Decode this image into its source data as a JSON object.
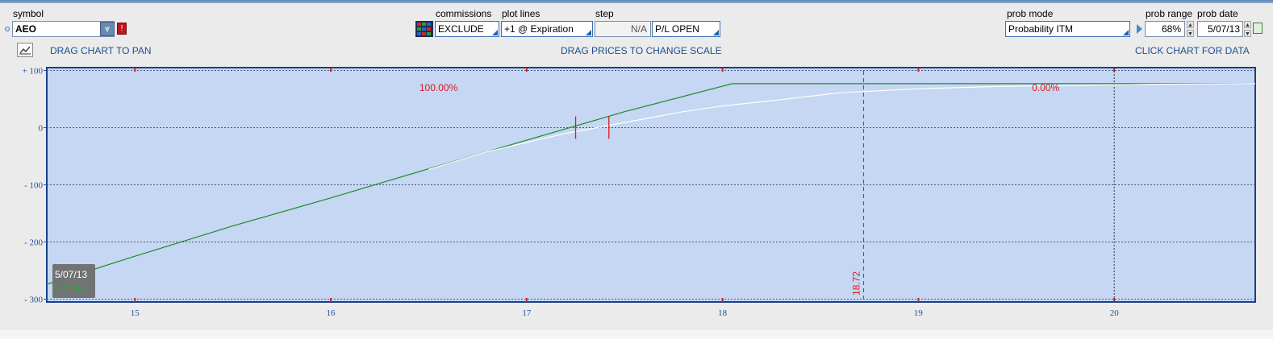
{
  "header": {
    "symbol_label": "symbol",
    "symbol_value": "AEO",
    "commissions_label": "commissions",
    "commissions_value": "EXCLUDE",
    "plot_lines_label": "plot lines",
    "plot_lines_value": "+1 @ Expiration",
    "step_label": "step",
    "step_value": "N/A",
    "pl_value": "P/L OPEN",
    "prob_mode_label": "prob mode",
    "prob_mode_value": "Probability ITM",
    "prob_range_label": "prob range",
    "prob_range_value": "68%",
    "prob_date_label": "prob date",
    "prob_date_value": "5/07/13"
  },
  "hints": {
    "pan": "DRAG CHART TO PAN",
    "scale": "DRAG PRICES TO CHANGE SCALE",
    "data": "CLICK CHART FOR DATA"
  },
  "icons": {
    "symbol_dropdown": "double-chevron-down-icon",
    "alert": "alert-icon",
    "commissions": "grid-icon",
    "chart_type": "chart-icon",
    "prob_arrow": "play-arrow-icon",
    "calendar": "calendar-icon"
  },
  "colors": {
    "plot_background": "#c5d7f2",
    "expiration_line": "#1f8a2e",
    "today_line": "#ffffff",
    "marker": "#e01919",
    "axis_text": "#1a4f9c"
  },
  "chart_data": {
    "type": "line",
    "x_ticks": [
      "15",
      "16",
      "17",
      "18",
      "19",
      "20"
    ],
    "y_ticks": [
      "+ 100",
      "0",
      "- 100",
      "- 200",
      "- 300"
    ],
    "xlim": [
      14.55,
      20.72
    ],
    "ylim": [
      -305,
      105
    ],
    "series": [
      {
        "color": "#1f8a2e",
        "x": [
          14.55,
          15.0,
          15.5,
          16.0,
          16.5,
          17.0,
          17.5,
          18.05,
          18.5,
          19.0,
          19.5,
          20.0,
          20.72
        ],
        "y": [
          -274,
          -225,
          -172,
          -123,
          -72,
          -22,
          28,
          77,
          77,
          77,
          77,
          77,
          77
        ]
      },
      {
        "color": "#ffffff",
        "x": [
          16.5,
          16.8,
          17.0,
          17.2,
          17.5,
          17.8,
          18.0,
          18.3,
          18.6,
          19.0,
          19.4,
          19.8,
          20.2,
          20.72
        ],
        "y": [
          -73,
          -42,
          -26,
          -10,
          9,
          28,
          38,
          49,
          61,
          68,
          72,
          74,
          76,
          77
        ]
      }
    ],
    "markers": [
      17.25,
      17.42
    ],
    "probability_line_x": 18.72,
    "probability_line_label": "18.72",
    "gridline_x_dotted": 20.0,
    "annotations": [
      {
        "text": "100.00%",
        "x": 16.55,
        "y": 70
      },
      {
        "text": "0.00%",
        "x": 19.65,
        "y": 70
      }
    ],
    "date_badge": "5/07/13",
    "date_badge_value": "-275.86",
    "grid": true
  }
}
